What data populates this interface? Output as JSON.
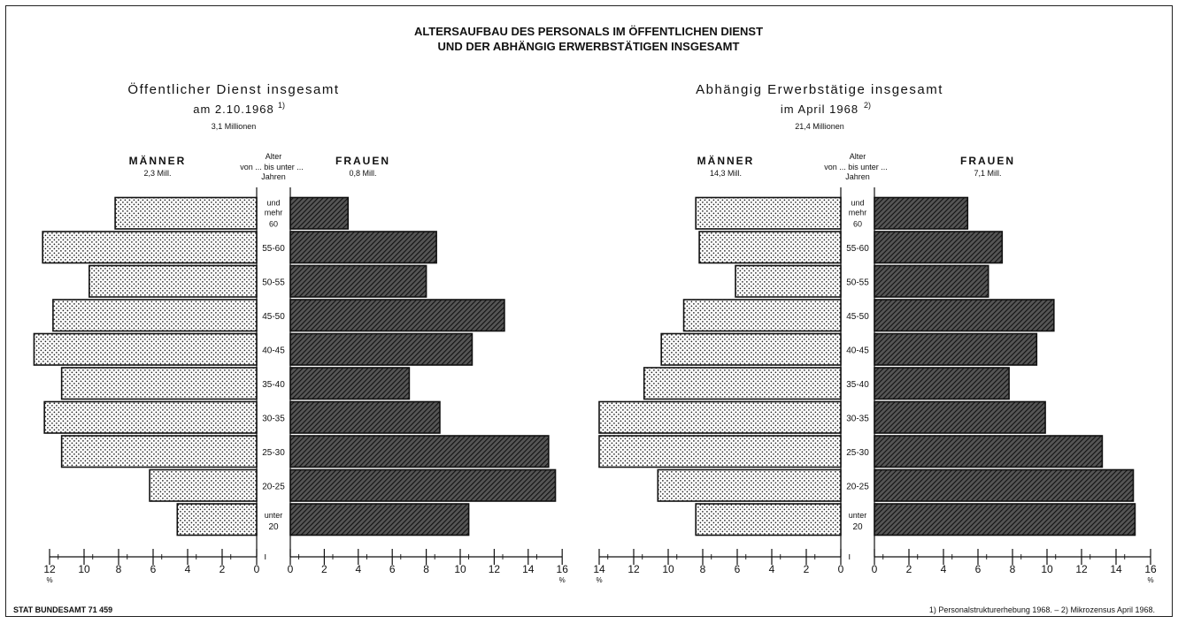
{
  "title_line1": "ALTERSAUFBAU DES PERSONALS IM ÖFFENTLICHEN DIENST",
  "title_line2": "UND DER ABHÄNGIG ERWERBSTÄTIGEN INSGESAMT",
  "source": "STAT BUNDESAMT 71 459",
  "footnote": "1) Personalstrukturerhebung 1968. – 2) Mikrozensus April 1968.",
  "axis_header": {
    "line1": "Alter",
    "line2": "von ... bis unter ...",
    "line3": "Jahren"
  },
  "unit_symbol": "%",
  "colors": {
    "ink": "#111111",
    "paper": "#ffffff",
    "maenner_fill": "dotted",
    "frauen_fill": "hatched"
  },
  "chart_data": [
    {
      "type": "bar",
      "orientation": "population-pyramid",
      "title": "Öffentlicher Dienst insgesamt",
      "subtitle": "am 2.10.1968",
      "subtitle_note": "1)",
      "total": "3,1 Millionen",
      "categories": [
        "und mehr 60",
        "55-60",
        "50-55",
        "45-50",
        "40-45",
        "35-40",
        "30-35",
        "25-30",
        "20-25",
        "unter 20"
      ],
      "series": [
        {
          "name": "MÄNNER",
          "subtitle": "2,3 Mill.",
          "side": "left",
          "values": [
            8.2,
            12.4,
            9.7,
            11.8,
            12.9,
            11.3,
            12.3,
            11.3,
            6.2,
            4.6
          ]
        },
        {
          "name": "FRAUEN",
          "subtitle": "0,8 Mill.",
          "side": "right",
          "values": [
            3.4,
            8.6,
            8.0,
            12.6,
            10.7,
            7.0,
            8.8,
            15.2,
            15.6,
            10.5
          ]
        }
      ],
      "xlim_left": [
        0,
        12
      ],
      "xlim_right": [
        0,
        16
      ],
      "ticks_left": [
        12,
        10,
        8,
        6,
        4,
        2,
        0
      ],
      "ticks_right": [
        0,
        2,
        4,
        6,
        8,
        10,
        12,
        14,
        16
      ],
      "xlabel": "%"
    },
    {
      "type": "bar",
      "orientation": "population-pyramid",
      "title": "Abhängig Erwerbstätige insgesamt",
      "subtitle": "im April 1968",
      "subtitle_note": "2)",
      "total": "21,4 Millionen",
      "categories": [
        "und mehr 60",
        "55-60",
        "50-55",
        "45-50",
        "40-45",
        "35-40",
        "30-35",
        "25-30",
        "20-25",
        "unter 20"
      ],
      "series": [
        {
          "name": "MÄNNER",
          "subtitle": "14,3 Mill.",
          "side": "left",
          "values": [
            8.4,
            8.2,
            6.1,
            9.1,
            10.4,
            11.4,
            14.0,
            14.0,
            10.6,
            8.4
          ]
        },
        {
          "name": "FRAUEN",
          "subtitle": "7,1 Mill.",
          "side": "right",
          "values": [
            5.4,
            7.4,
            6.6,
            10.4,
            9.4,
            7.8,
            9.9,
            13.2,
            15.0,
            15.1
          ]
        }
      ],
      "xlim_left": [
        0,
        14
      ],
      "xlim_right": [
        0,
        16
      ],
      "ticks_left": [
        14,
        12,
        10,
        8,
        6,
        4,
        2,
        0
      ],
      "ticks_right": [
        0,
        2,
        4,
        6,
        8,
        10,
        12,
        14,
        16
      ],
      "xlabel": "%"
    }
  ]
}
